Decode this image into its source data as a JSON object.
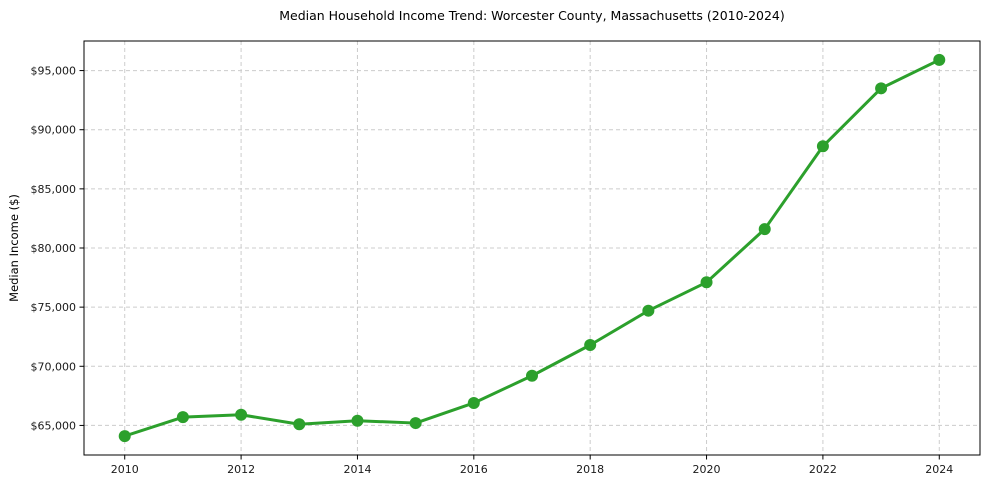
{
  "chart_data": {
    "type": "line",
    "title": "Median Household Income Trend: Worcester County, Massachusetts (2010-2024)",
    "xlabel": "",
    "ylabel": "Median Income ($)",
    "x": [
      2010,
      2011,
      2012,
      2013,
      2014,
      2015,
      2016,
      2017,
      2018,
      2019,
      2020,
      2021,
      2022,
      2023,
      2024
    ],
    "values": [
      64100,
      65700,
      65900,
      65100,
      65400,
      65200,
      66900,
      69200,
      71800,
      74700,
      77100,
      81600,
      88600,
      93500,
      95900
    ],
    "xticks": {
      "values": [
        2010,
        2012,
        2014,
        2016,
        2018,
        2020,
        2022,
        2024
      ],
      "labels": [
        "2010",
        "2012",
        "2014",
        "2016",
        "2018",
        "2020",
        "2022",
        "2024"
      ]
    },
    "yticks": {
      "values": [
        65000,
        70000,
        75000,
        80000,
        85000,
        90000,
        95000
      ],
      "labels": [
        "$65,000",
        "$70,000",
        "$75,000",
        "$80,000",
        "$85,000",
        "$90,000",
        "$95,000"
      ]
    },
    "xlim": [
      2009.3,
      2024.7
    ],
    "ylim": [
      62500,
      97500
    ],
    "grid": true,
    "grid_on": "both",
    "legend": false,
    "line_color": "#2ca02c",
    "line_width": 3,
    "marker": "circle",
    "marker_radius": 6,
    "grid_color": "#cccccc",
    "axis_color": "#000000",
    "background": "#ffffff"
  }
}
